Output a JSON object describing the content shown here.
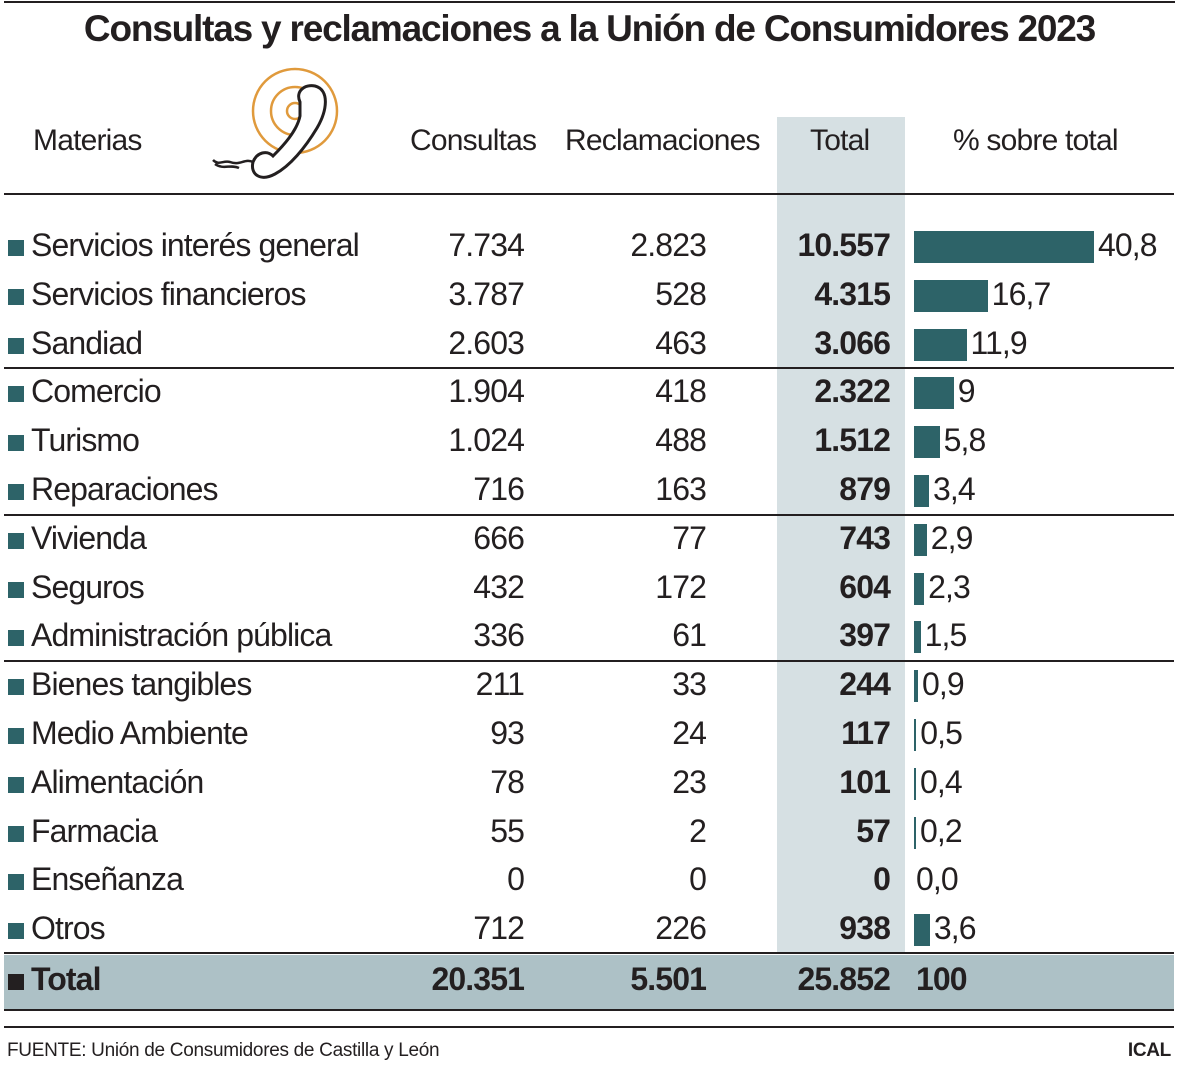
{
  "title": "Consultas y reclamaciones a la Unión de Consumidores 2023",
  "headers": {
    "materias": "Materias",
    "consultas": "Consultas",
    "reclamaciones": "Reclamaciones",
    "total": "Total",
    "pct": "% sobre total"
  },
  "icons": {
    "header": "telephone-handset-icon"
  },
  "colors": {
    "bar": "#2d6368",
    "total_column": "#d6e0e3",
    "total_row": "#adc1c6",
    "icon_rings": "#e09a3c"
  },
  "chart_data": {
    "type": "table",
    "title": "Consultas y reclamaciones a la Unión de Consumidores 2023",
    "columns": [
      "Materias",
      "Consultas",
      "Reclamaciones",
      "Total",
      "% sobre total"
    ],
    "rows": [
      {
        "materia": "Servicios interés general",
        "consultas": "7.734",
        "reclamaciones": "2.823",
        "total": "10.557",
        "pct": "40,8",
        "pct_value": 40.8
      },
      {
        "materia": "Servicios financieros",
        "consultas": "3.787",
        "reclamaciones": "528",
        "total": "4.315",
        "pct": "16,7",
        "pct_value": 16.7
      },
      {
        "materia": "Sandiad",
        "consultas": "2.603",
        "reclamaciones": "463",
        "total": "3.066",
        "pct": "11,9",
        "pct_value": 11.9
      },
      {
        "materia": "Comercio",
        "consultas": "1.904",
        "reclamaciones": "418",
        "total": "2.322",
        "pct": "9",
        "pct_value": 9
      },
      {
        "materia": "Turismo",
        "consultas": "1.024",
        "reclamaciones": "488",
        "total": "1.512",
        "pct": "5,8",
        "pct_value": 5.8
      },
      {
        "materia": "Reparaciones",
        "consultas": "716",
        "reclamaciones": "163",
        "total": "879",
        "pct": "3,4",
        "pct_value": 3.4
      },
      {
        "materia": "Vivienda",
        "consultas": "666",
        "reclamaciones": "77",
        "total": "743",
        "pct": "2,9",
        "pct_value": 2.9
      },
      {
        "materia": "Seguros",
        "consultas": "432",
        "reclamaciones": "172",
        "total": "604",
        "pct": "2,3",
        "pct_value": 2.3
      },
      {
        "materia": "Administración pública",
        "consultas": "336",
        "reclamaciones": "61",
        "total": "397",
        "pct": "1,5",
        "pct_value": 1.5
      },
      {
        "materia": "Bienes tangibles",
        "consultas": "211",
        "reclamaciones": "33",
        "total": "244",
        "pct": "0,9",
        "pct_value": 0.9
      },
      {
        "materia": "Medio Ambiente",
        "consultas": "93",
        "reclamaciones": "24",
        "total": "117",
        "pct": "0,5",
        "pct_value": 0.5
      },
      {
        "materia": "Alimentación",
        "consultas": "78",
        "reclamaciones": "23",
        "total": "101",
        "pct": "0,4",
        "pct_value": 0.4
      },
      {
        "materia": "Farmacia",
        "consultas": "55",
        "reclamaciones": "2",
        "total": "57",
        "pct": "0,2",
        "pct_value": 0.2
      },
      {
        "materia": "Enseñanza",
        "consultas": "0",
        "reclamaciones": "0",
        "total": "0",
        "pct": "0,0",
        "pct_value": 0
      },
      {
        "materia": "Otros",
        "consultas": "712",
        "reclamaciones": "226",
        "total": "938",
        "pct": "3,6",
        "pct_value": 3.6
      }
    ],
    "total": {
      "materia": "Total",
      "consultas": "20.351",
      "reclamaciones": "5.501",
      "total": "25.852",
      "pct": "100"
    },
    "bar_range": [
      0,
      40.8
    ]
  },
  "footer": {
    "source": "FUENTE: Unión de Consumidores de Castilla y León",
    "credit": "ICAL"
  }
}
